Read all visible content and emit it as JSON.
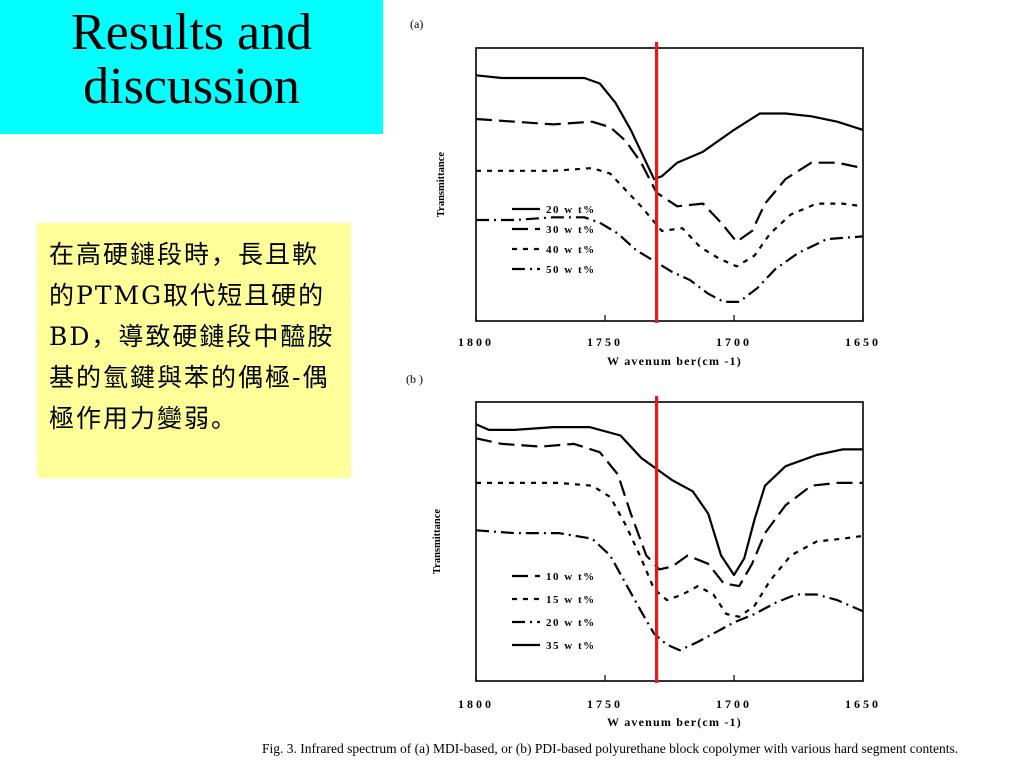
{
  "slide": {
    "title_line1": "Results and",
    "title_line2": "discussion",
    "note_text": "在高硬鏈段時，長且軟的PTMG取代短且硬的BD，導致硬鏈段中醯胺基的氫鍵與苯的偶極-偶極作用力變弱。",
    "caption": "Fig. 3. Infrared spectrum of (a) MDI-based, or (b) PDI-based polyurethane block copolymer with various hard segment contents."
  },
  "colors": {
    "title_bg": "#00ffff",
    "note_bg": "#ffff99",
    "marker": "#e8191b"
  },
  "chart_data": [
    {
      "panel_label": "(a)",
      "type": "line",
      "xlabel": "W avenum ber(cm -1)",
      "ylabel": "Transmittance",
      "xlim": [
        1800,
        1650
      ],
      "x_ticks": [
        1800,
        1750,
        1700,
        1650
      ],
      "y_ticks_shown": false,
      "grid": false,
      "legend_position": "lower-left",
      "reference_line_x": 1730,
      "series": [
        {
          "name": "20 w t%",
          "dash": "solid",
          "x": [
            1800,
            1790,
            1770,
            1758,
            1752,
            1746,
            1740,
            1735,
            1731,
            1728,
            1722,
            1712,
            1700,
            1690,
            1680,
            1670,
            1660,
            1650
          ],
          "y": [
            0.9,
            0.89,
            0.89,
            0.89,
            0.87,
            0.8,
            0.7,
            0.6,
            0.52,
            0.53,
            0.58,
            0.62,
            0.7,
            0.76,
            0.76,
            0.75,
            0.73,
            0.7
          ]
        },
        {
          "name": "30 w t%",
          "dash": "long",
          "x": [
            1800,
            1785,
            1770,
            1755,
            1748,
            1742,
            1736,
            1730,
            1722,
            1712,
            1705,
            1699,
            1693,
            1688,
            1680,
            1670,
            1660,
            1650
          ],
          "y": [
            0.74,
            0.73,
            0.72,
            0.73,
            0.71,
            0.66,
            0.58,
            0.47,
            0.42,
            0.43,
            0.36,
            0.29,
            0.33,
            0.43,
            0.52,
            0.58,
            0.58,
            0.56
          ]
        },
        {
          "name": "40 w t%",
          "dash": "short",
          "x": [
            1800,
            1785,
            1770,
            1755,
            1748,
            1742,
            1736,
            1728,
            1720,
            1713,
            1706,
            1699,
            1692,
            1686,
            1678,
            1668,
            1658,
            1650
          ],
          "y": [
            0.55,
            0.55,
            0.55,
            0.56,
            0.54,
            0.48,
            0.42,
            0.33,
            0.34,
            0.27,
            0.23,
            0.2,
            0.24,
            0.32,
            0.39,
            0.43,
            0.43,
            0.42
          ]
        },
        {
          "name": "50 w t%",
          "dash": "dashdot",
          "x": [
            1800,
            1785,
            1770,
            1758,
            1752,
            1745,
            1738,
            1731,
            1724,
            1717,
            1710,
            1704,
            1698,
            1691,
            1684,
            1675,
            1664,
            1650
          ],
          "y": [
            0.37,
            0.37,
            0.38,
            0.38,
            0.36,
            0.32,
            0.26,
            0.22,
            0.18,
            0.15,
            0.1,
            0.07,
            0.07,
            0.12,
            0.19,
            0.25,
            0.3,
            0.31
          ]
        }
      ]
    },
    {
      "panel_label": "(b )",
      "type": "line",
      "xlabel": "W avenum ber(cm -1)",
      "ylabel": "Transmittance",
      "xlim": [
        1800,
        1650
      ],
      "x_ticks": [
        1800,
        1750,
        1700,
        1650
      ],
      "y_ticks_shown": false,
      "grid": false,
      "legend_position": "lower-left",
      "reference_line_x": 1730,
      "series": [
        {
          "name": "10 w t%",
          "dash": "long",
          "x": [
            1800,
            1790,
            1775,
            1762,
            1752,
            1745,
            1740,
            1734,
            1729,
            1724,
            1718,
            1710,
            1704,
            1698,
            1693,
            1688,
            1680,
            1670,
            1660,
            1650
          ],
          "y": [
            0.87,
            0.85,
            0.84,
            0.85,
            0.82,
            0.74,
            0.6,
            0.45,
            0.4,
            0.41,
            0.45,
            0.42,
            0.35,
            0.34,
            0.42,
            0.53,
            0.63,
            0.7,
            0.71,
            0.71
          ]
        },
        {
          "name": "15 w t%",
          "dash": "short",
          "x": [
            1800,
            1785,
            1768,
            1755,
            1748,
            1742,
            1736,
            1731,
            1726,
            1720,
            1714,
            1708,
            1703,
            1698,
            1692,
            1686,
            1678,
            1668,
            1658,
            1650
          ],
          "y": [
            0.71,
            0.71,
            0.71,
            0.7,
            0.66,
            0.56,
            0.44,
            0.33,
            0.29,
            0.31,
            0.34,
            0.31,
            0.24,
            0.23,
            0.27,
            0.36,
            0.45,
            0.5,
            0.51,
            0.52
          ]
        },
        {
          "name": "20 w t%",
          "dash": "dashdot",
          "x": [
            1800,
            1785,
            1768,
            1755,
            1748,
            1742,
            1736,
            1731,
            1726,
            1721,
            1714,
            1706,
            1700,
            1692,
            1684,
            1676,
            1668,
            1660,
            1650
          ],
          "y": [
            0.54,
            0.53,
            0.53,
            0.51,
            0.45,
            0.35,
            0.25,
            0.17,
            0.13,
            0.11,
            0.14,
            0.18,
            0.21,
            0.24,
            0.28,
            0.31,
            0.31,
            0.29,
            0.25
          ]
        },
        {
          "name": "35 w t%",
          "dash": "solid",
          "x": [
            1800,
            1795,
            1785,
            1770,
            1756,
            1744,
            1736,
            1730,
            1724,
            1716,
            1710,
            1705,
            1700,
            1696,
            1692,
            1688,
            1680,
            1668,
            1658,
            1650
          ],
          "y": [
            0.92,
            0.9,
            0.9,
            0.91,
            0.91,
            0.88,
            0.8,
            0.76,
            0.72,
            0.68,
            0.6,
            0.45,
            0.38,
            0.44,
            0.58,
            0.7,
            0.77,
            0.81,
            0.83,
            0.83
          ]
        }
      ]
    }
  ]
}
